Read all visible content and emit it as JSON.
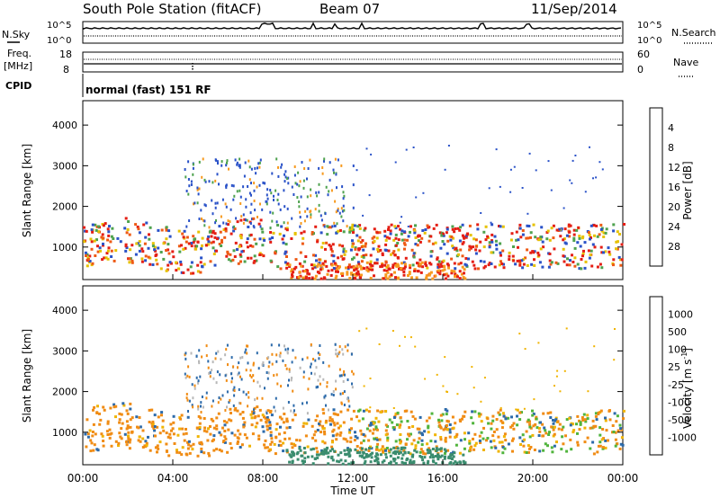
{
  "header": {
    "title": "South Pole Station (fitACF)",
    "beam": "Beam 07",
    "date": "11/Sep/2014"
  },
  "summary_panels": {
    "nsky_label": "N.Sky",
    "nsearch_label": "N.Search",
    "freq_label_top": "Freq.",
    "freq_label_bottom": "[MHz]",
    "nave_label": "Nave",
    "cpid_label": "CPID",
    "cpid_text": "normal (fast) 151 RF",
    "noise_ticks_left": [
      "10^5",
      "10^0"
    ],
    "noise_ticks_right": [
      "10^5",
      "10^0"
    ],
    "freq_ticks": [
      "18",
      "8"
    ],
    "nave_ticks": [
      "60",
      "0"
    ]
  },
  "chart_data": [
    {
      "type": "heatmap",
      "name": "power",
      "ylabel": "Slant Range [km]",
      "yticks": [
        "1000",
        "2000",
        "3000",
        "4000"
      ],
      "ylim": [
        200,
        4600
      ],
      "colorbar_label": "Power [dB]",
      "colorbar_ticks": [
        "4",
        "8",
        "12",
        "16",
        "20",
        "24",
        "28"
      ],
      "colors": [
        "#1a00f0",
        "#2a52c8",
        "#3a7a6e",
        "#4ea24e",
        "#86c23a",
        "#e6c200",
        "#f79a1e",
        "#ee5a14",
        "#e41e14",
        "#c81414"
      ]
    },
    {
      "type": "heatmap",
      "name": "velocity",
      "ylabel": "Slant Range [km]",
      "yticks": [
        "1000",
        "2000",
        "3000",
        "4000"
      ],
      "ylim": [
        200,
        4600
      ],
      "colorbar_label": "Velocity [m s",
      "colorbar_label_sup": "-1",
      "colorbar_ticks": [
        "1000",
        "500",
        "100",
        "25",
        "-25",
        "-100",
        "-500",
        "-1000"
      ],
      "colors": [
        "#2432c8",
        "#2c6aaa",
        "#3a8c6e",
        "#50b43c",
        "#b8b8b8",
        "#f0b400",
        "#f08c14",
        "#ee5a14",
        "#e01414"
      ]
    }
  ],
  "xaxis": {
    "label": "Time UT",
    "ticks": [
      "00:00",
      "04:00",
      "08:00",
      "12:00",
      "16:00",
      "20:00",
      "00:00"
    ]
  }
}
